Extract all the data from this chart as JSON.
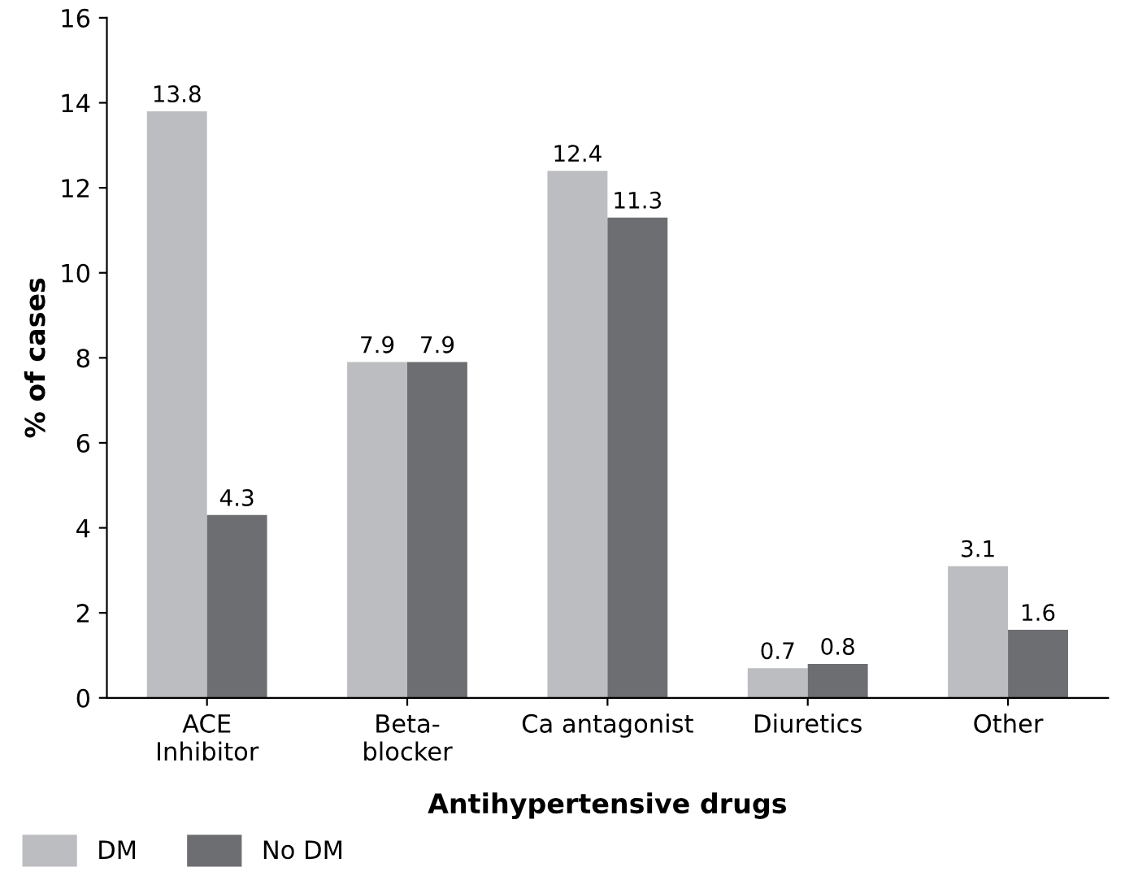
{
  "chart_data": {
    "type": "bar",
    "xlabel": "Antihypertensive drugs",
    "ylabel": "% of cases",
    "categories": [
      "ACE\nInhibitor",
      "Beta-\nblocker",
      "Ca antagonist",
      "Diuretics",
      "Other"
    ],
    "series": [
      {
        "name": "DM",
        "color": "#bcbdc0",
        "values": [
          13.8,
          7.9,
          12.4,
          0.7,
          3.1
        ]
      },
      {
        "name": "No DM",
        "color": "#6d6e71",
        "values": [
          4.3,
          7.9,
          11.3,
          0.8,
          1.6
        ]
      }
    ],
    "ylim": [
      0,
      16
    ],
    "yticks": [
      0,
      2,
      4,
      6,
      8,
      10,
      12,
      14,
      16
    ],
    "grid": false,
    "legend": "bottom left",
    "data_labels": true
  }
}
